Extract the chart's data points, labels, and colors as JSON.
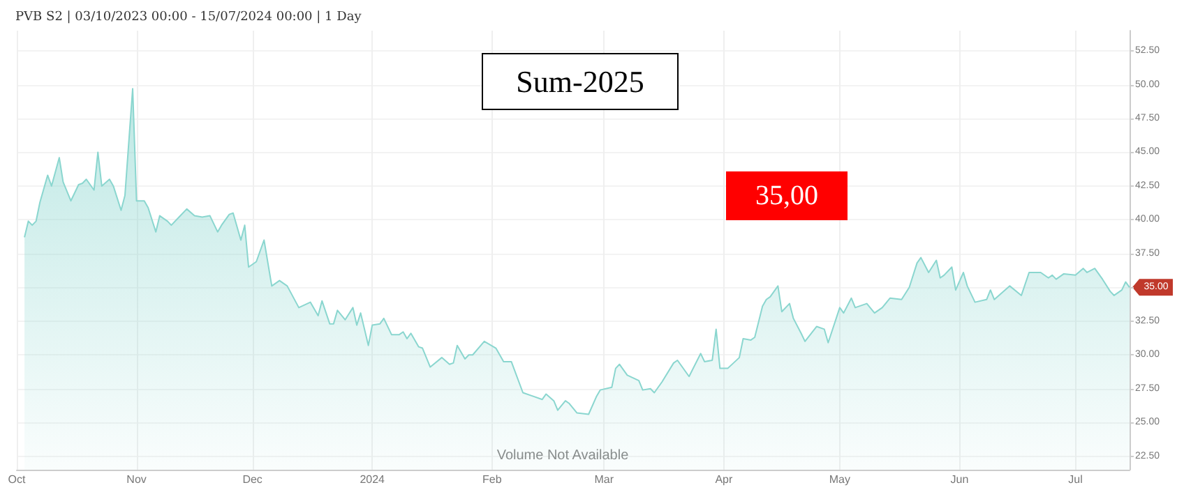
{
  "chart_data": {
    "type": "area",
    "title": "PVB S2 | 03/10/2023 00:00 - 15/07/2024 00:00 | 1 Day",
    "x": [
      "2023-10-03",
      "2023-10-04",
      "2023-10-05",
      "2023-10-06",
      "2023-10-07",
      "2023-10-09",
      "2023-10-10",
      "2023-10-12",
      "2023-10-13",
      "2023-10-15",
      "2023-10-17",
      "2023-10-18",
      "2023-10-19",
      "2023-10-21",
      "2023-10-22",
      "2023-10-23",
      "2023-10-25",
      "2023-10-26",
      "2023-10-28",
      "2023-10-29",
      "2023-10-31",
      "2023-11-01",
      "2023-11-03",
      "2023-11-04",
      "2023-11-06",
      "2023-11-07",
      "2023-11-09",
      "2023-11-10",
      "2023-11-12",
      "2023-11-14",
      "2023-11-16",
      "2023-11-18",
      "2023-11-20",
      "2023-11-22",
      "2023-11-23",
      "2023-11-25",
      "2023-11-26",
      "2023-11-28",
      "2023-11-29",
      "2023-11-30",
      "2023-12-02",
      "2023-12-04",
      "2023-12-06",
      "2023-12-08",
      "2023-12-10",
      "2023-12-13",
      "2023-12-16",
      "2023-12-18",
      "2023-12-19",
      "2023-12-21",
      "2023-12-22",
      "2023-12-23",
      "2023-12-25",
      "2023-12-27",
      "2023-12-28",
      "2023-12-29",
      "2023-12-31",
      "2024-01-01",
      "2024-01-03",
      "2024-01-04",
      "2024-01-06",
      "2024-01-08",
      "2024-01-09",
      "2024-01-10",
      "2024-01-11",
      "2024-01-13",
      "2024-01-14",
      "2024-01-16",
      "2024-01-19",
      "2024-01-21",
      "2024-01-22",
      "2024-01-23",
      "2024-01-25",
      "2024-01-26",
      "2024-01-27",
      "2024-01-30",
      "2024-02-02",
      "2024-02-04",
      "2024-02-06",
      "2024-02-09",
      "2024-02-14",
      "2024-02-15",
      "2024-02-17",
      "2024-02-18",
      "2024-02-20",
      "2024-02-21",
      "2024-02-23",
      "2024-02-26",
      "2024-02-28",
      "2024-02-29",
      "2024-03-03",
      "2024-03-04",
      "2024-03-05",
      "2024-03-07",
      "2024-03-10",
      "2024-03-11",
      "2024-03-13",
      "2024-03-14",
      "2024-03-16",
      "2024-03-19",
      "2024-03-20",
      "2024-03-23",
      "2024-03-26",
      "2024-03-27",
      "2024-03-29",
      "2024-03-30",
      "2024-03-31",
      "2024-04-02",
      "2024-04-05",
      "2024-04-06",
      "2024-04-08",
      "2024-04-09",
      "2024-04-11",
      "2024-04-12",
      "2024-04-13",
      "2024-04-15",
      "2024-04-16",
      "2024-04-18",
      "2024-04-19",
      "2024-04-21",
      "2024-04-22",
      "2024-04-25",
      "2024-04-27",
      "2024-04-28",
      "2024-05-01",
      "2024-05-02",
      "2024-05-04",
      "2024-05-05",
      "2024-05-08",
      "2024-05-10",
      "2024-05-12",
      "2024-05-14",
      "2024-05-17",
      "2024-05-19",
      "2024-05-21",
      "2024-05-22",
      "2024-05-24",
      "2024-05-26",
      "2024-05-27",
      "2024-05-28",
      "2024-05-30",
      "2024-05-31",
      "2024-06-02",
      "2024-06-03",
      "2024-06-05",
      "2024-06-08",
      "2024-06-09",
      "2024-06-10",
      "2024-06-14",
      "2024-06-17",
      "2024-06-19",
      "2024-06-22",
      "2024-06-24",
      "2024-06-25",
      "2024-06-26",
      "2024-06-28",
      "2024-07-01",
      "2024-07-03",
      "2024-07-04",
      "2024-07-06",
      "2024-07-08",
      "2024-07-10",
      "2024-07-11",
      "2024-07-13",
      "2024-07-14",
      "2024-07-15"
    ],
    "series": [
      {
        "color": "#8ad6cf",
        "values": [
          38.7,
          39.9,
          39.6,
          39.9,
          41.3,
          43.3,
          42.5,
          44.6,
          42.8,
          41.4,
          42.6,
          42.7,
          43.0,
          42.2,
          45.0,
          42.5,
          43.0,
          42.5,
          40.7,
          41.8,
          49.7,
          41.4,
          41.4,
          40.9,
          39.1,
          40.3,
          39.9,
          39.6,
          40.2,
          40.8,
          40.3,
          40.2,
          40.3,
          39.1,
          39.6,
          40.4,
          40.5,
          38.5,
          39.6,
          36.5,
          36.9,
          38.5,
          35.1,
          35.5,
          35.1,
          33.5,
          33.9,
          32.9,
          34.0,
          32.3,
          32.3,
          33.3,
          32.6,
          33.5,
          32.2,
          33.1,
          30.7,
          32.2,
          32.3,
          32.7,
          31.5,
          31.5,
          31.7,
          31.2,
          31.6,
          30.6,
          30.5,
          29.1,
          29.8,
          29.3,
          29.4,
          30.7,
          29.7,
          30.0,
          30.0,
          31.0,
          30.5,
          29.5,
          29.5,
          27.2,
          26.7,
          27.1,
          26.6,
          25.9,
          26.6,
          26.4,
          25.7,
          25.6,
          26.9,
          27.4,
          27.6,
          29.0,
          29.3,
          28.5,
          28.1,
          27.4,
          27.5,
          27.2,
          28.0,
          29.4,
          29.6,
          28.4,
          30.1,
          29.5,
          29.6,
          31.9,
          29.0,
          29.0,
          29.8,
          31.2,
          31.1,
          31.3,
          33.6,
          34.1,
          34.3,
          35.1,
          33.2,
          33.8,
          32.7,
          31.6,
          31.0,
          32.1,
          31.9,
          30.9,
          33.5,
          33.1,
          34.2,
          33.5,
          33.8,
          33.1,
          33.5,
          34.2,
          34.1,
          35.0,
          36.8,
          37.2,
          36.1,
          37.0,
          35.7,
          35.9,
          36.5,
          34.8,
          36.1,
          35.1,
          33.9,
          34.1,
          34.8,
          34.1,
          35.1,
          34.4,
          36.1,
          36.1,
          35.7,
          35.9,
          35.6,
          36.0,
          35.9,
          36.4,
          36.1,
          36.4,
          35.6,
          34.7,
          34.4,
          34.8,
          35.4,
          35.0
        ]
      }
    ],
    "xlim": [
      "2023-10-01",
      "2024-07-15"
    ],
    "xticks": [
      {
        "value": "2023-10-01",
        "label": "Oct"
      },
      {
        "value": "2023-11-01",
        "label": "Nov"
      },
      {
        "value": "2023-12-01",
        "label": "Dec"
      },
      {
        "value": "2024-01-01",
        "label": "2024"
      },
      {
        "value": "2024-02-01",
        "label": "Feb"
      },
      {
        "value": "2024-03-01",
        "label": "Mar"
      },
      {
        "value": "2024-04-01",
        "label": "Apr"
      },
      {
        "value": "2024-05-01",
        "label": "May"
      },
      {
        "value": "2024-06-01",
        "label": "Jun"
      },
      {
        "value": "2024-07-01",
        "label": "Jul"
      }
    ],
    "ylim": [
      21.5,
      54
    ],
    "yticks": [
      {
        "value": 22.5,
        "label": "22.50"
      },
      {
        "value": 25,
        "label": "25.00"
      },
      {
        "value": 27.5,
        "label": "27.50"
      },
      {
        "value": 30,
        "label": "30.00"
      },
      {
        "value": 32.5,
        "label": "32.50"
      },
      {
        "value": 35,
        "label": null
      },
      {
        "value": 37.5,
        "label": "37.50"
      },
      {
        "value": 40,
        "label": "40.00"
      },
      {
        "value": 42.5,
        "label": "42.50"
      },
      {
        "value": 45,
        "label": "45.00"
      },
      {
        "value": 47.5,
        "label": "47.50"
      },
      {
        "value": 50,
        "label": "50.00"
      },
      {
        "value": 52.5,
        "label": "52.50"
      }
    ],
    "annotations": [
      "Sum-2025",
      "35,00",
      "Volume Not Available",
      {
        "text": "35.00",
        "x": "2024-07-15",
        "y": 35
      }
    ],
    "grid": true,
    "marker": "none"
  }
}
